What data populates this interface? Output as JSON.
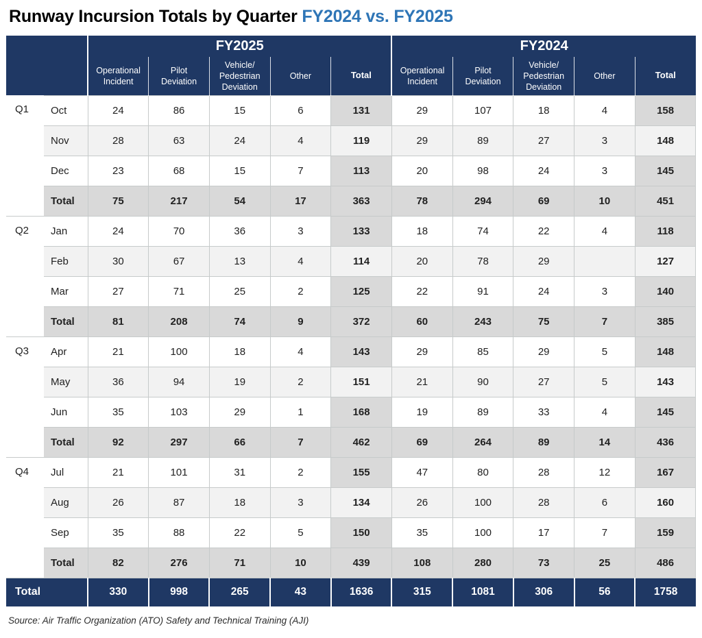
{
  "title": {
    "main": "Runway Incursion Totals by Quarter",
    "highlight": "FY2024 vs. FY2025"
  },
  "colors": {
    "navy": "#1F3864",
    "title_blue": "#2E75B6",
    "total_bg": "#D9D9D9",
    "alt_row_bg": "#F2F2F2",
    "border": "#C6CACA"
  },
  "table": {
    "year_groups": [
      "FY2025",
      "FY2024"
    ],
    "sub_columns": [
      "Operational Incident",
      "Pilot Deviation",
      "Vehicle/ Pedestrian Deviation",
      "Other",
      "Total"
    ],
    "quarters": [
      {
        "label": "Q1",
        "months": [
          {
            "name": "Oct",
            "fy2025": [
              "24",
              "86",
              "15",
              "6",
              "131"
            ],
            "fy2024": [
              "29",
              "107",
              "18",
              "4",
              "158"
            ]
          },
          {
            "name": "Nov",
            "fy2025": [
              "28",
              "63",
              "24",
              "4",
              "119"
            ],
            "fy2024": [
              "29",
              "89",
              "27",
              "3",
              "148"
            ]
          },
          {
            "name": "Dec",
            "fy2025": [
              "23",
              "68",
              "15",
              "7",
              "113"
            ],
            "fy2024": [
              "20",
              "98",
              "24",
              "3",
              "145"
            ]
          }
        ],
        "total": {
          "label": "Total",
          "fy2025": [
            "75",
            "217",
            "54",
            "17",
            "363"
          ],
          "fy2024": [
            "78",
            "294",
            "69",
            "10",
            "451"
          ]
        }
      },
      {
        "label": "Q2",
        "months": [
          {
            "name": "Jan",
            "fy2025": [
              "24",
              "70",
              "36",
              "3",
              "133"
            ],
            "fy2024": [
              "18",
              "74",
              "22",
              "4",
              "118"
            ]
          },
          {
            "name": "Feb",
            "fy2025": [
              "30",
              "67",
              "13",
              "4",
              "114"
            ],
            "fy2024": [
              "20",
              "78",
              "29",
              "",
              "127"
            ]
          },
          {
            "name": "Mar",
            "fy2025": [
              "27",
              "71",
              "25",
              "2",
              "125"
            ],
            "fy2024": [
              "22",
              "91",
              "24",
              "3",
              "140"
            ]
          }
        ],
        "total": {
          "label": "Total",
          "fy2025": [
            "81",
            "208",
            "74",
            "9",
            "372"
          ],
          "fy2024": [
            "60",
            "243",
            "75",
            "7",
            "385"
          ]
        }
      },
      {
        "label": "Q3",
        "months": [
          {
            "name": "Apr",
            "fy2025": [
              "21",
              "100",
              "18",
              "4",
              "143"
            ],
            "fy2024": [
              "29",
              "85",
              "29",
              "5",
              "148"
            ]
          },
          {
            "name": "May",
            "fy2025": [
              "36",
              "94",
              "19",
              "2",
              "151"
            ],
            "fy2024": [
              "21",
              "90",
              "27",
              "5",
              "143"
            ]
          },
          {
            "name": "Jun",
            "fy2025": [
              "35",
              "103",
              "29",
              "1",
              "168"
            ],
            "fy2024": [
              "19",
              "89",
              "33",
              "4",
              "145"
            ]
          }
        ],
        "total": {
          "label": "Total",
          "fy2025": [
            "92",
            "297",
            "66",
            "7",
            "462"
          ],
          "fy2024": [
            "69",
            "264",
            "89",
            "14",
            "436"
          ]
        }
      },
      {
        "label": "Q4",
        "months": [
          {
            "name": "Jul",
            "fy2025": [
              "21",
              "101",
              "31",
              "2",
              "155"
            ],
            "fy2024": [
              "47",
              "80",
              "28",
              "12",
              "167"
            ]
          },
          {
            "name": "Aug",
            "fy2025": [
              "26",
              "87",
              "18",
              "3",
              "134"
            ],
            "fy2024": [
              "26",
              "100",
              "28",
              "6",
              "160"
            ]
          },
          {
            "name": "Sep",
            "fy2025": [
              "35",
              "88",
              "22",
              "5",
              "150"
            ],
            "fy2024": [
              "35",
              "100",
              "17",
              "7",
              "159"
            ]
          }
        ],
        "total": {
          "label": "Total",
          "fy2025": [
            "82",
            "276",
            "71",
            "10",
            "439"
          ],
          "fy2024": [
            "108",
            "280",
            "73",
            "25",
            "486"
          ]
        }
      }
    ],
    "grand_total": {
      "label": "Total",
      "fy2025": [
        "330",
        "998",
        "265",
        "43",
        "1636"
      ],
      "fy2024": [
        "315",
        "1081",
        "306",
        "56",
        "1758"
      ]
    }
  },
  "source": "Source: Air Traffic Organization (ATO) Safety and Technical Training (AJI)"
}
